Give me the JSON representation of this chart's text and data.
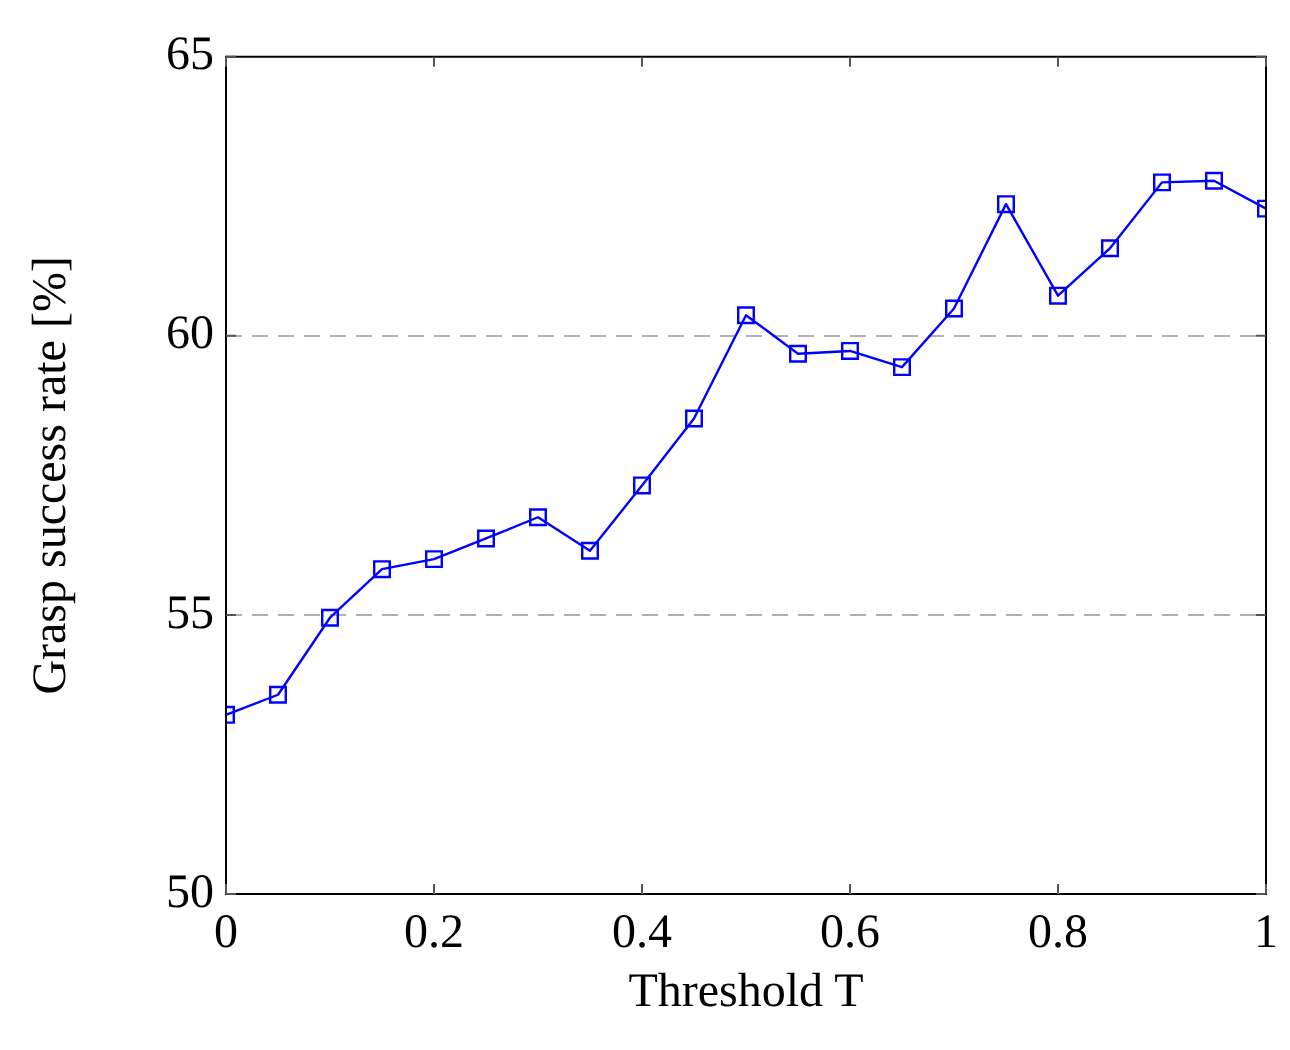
{
  "chart_data": {
    "type": "line",
    "xlabel": "Threshold T",
    "ylabel": "Grasp success rate [%]",
    "x": [
      0,
      0.05,
      0.1,
      0.15,
      0.2,
      0.25,
      0.3,
      0.35,
      0.4,
      0.45,
      0.5,
      0.55,
      0.6,
      0.65,
      0.7,
      0.75,
      0.8,
      0.85,
      0.9,
      0.95,
      1
    ],
    "series": [
      {
        "color": "#0000ff",
        "values": [
          53.21,
          53.57,
          54.95,
          55.82,
          56.0,
          56.37,
          56.75,
          56.15,
          57.32,
          58.52,
          60.37,
          59.68,
          59.73,
          59.44,
          60.49,
          62.36,
          60.72,
          61.57,
          62.75,
          62.78,
          62.28
        ]
      }
    ],
    "xlim": [
      0,
      1
    ],
    "xticks": [
      0,
      0.2,
      0.4,
      0.6,
      0.8,
      1
    ],
    "ylim": [
      50,
      65
    ],
    "yticks": [
      50,
      55,
      60,
      65
    ],
    "grid": "y",
    "marker": "square",
    "line_style": "solid",
    "legend": false
  }
}
